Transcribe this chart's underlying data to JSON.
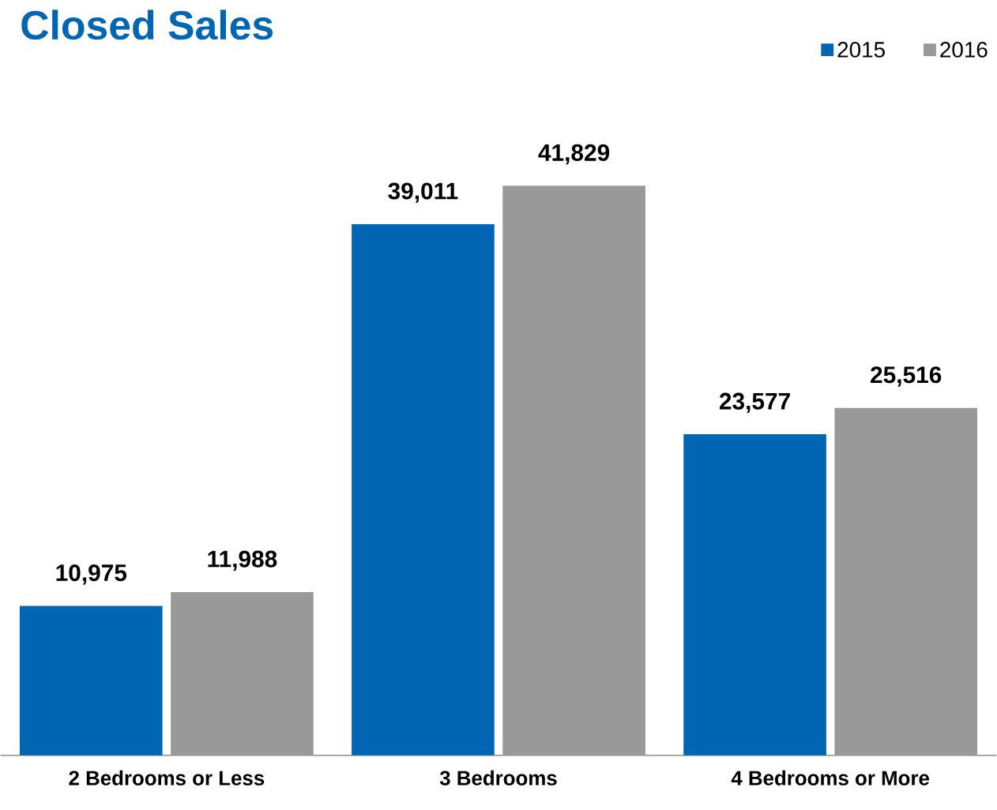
{
  "chart_data": {
    "type": "bar",
    "title": "Closed Sales",
    "categories": [
      "2 Bedrooms or Less",
      "3 Bedrooms",
      "4 Bedrooms or More"
    ],
    "series": [
      {
        "name": "2015",
        "color": "#0066b3",
        "values": [
          10975,
          39011,
          23577
        ],
        "value_labels": [
          "10,975",
          "39,011",
          "23,577"
        ]
      },
      {
        "name": "2016",
        "color": "#999999",
        "values": [
          11988,
          41829,
          25516
        ],
        "value_labels": [
          "11,988",
          "41,829",
          "25,516"
        ]
      }
    ],
    "legend": "top right"
  }
}
